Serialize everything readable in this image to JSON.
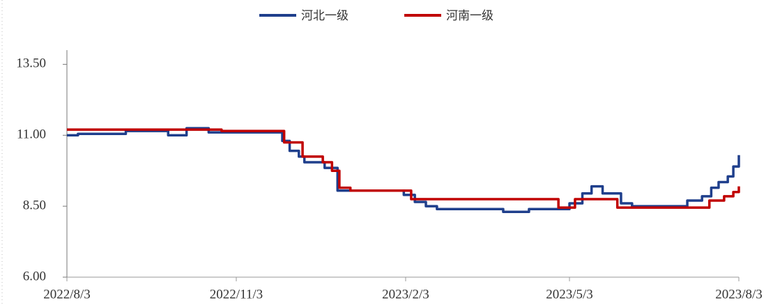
{
  "chart_data": {
    "type": "step-line",
    "xlim": [
      "2022/8/3",
      "2023/8/3"
    ],
    "xticks": [
      "2022/8/3",
      "2022/11/3",
      "2023/2/3",
      "2023/5/3",
      "2023/8/3"
    ],
    "ylim": [
      6,
      14
    ],
    "yticks": [
      {
        "value": 6,
        "label": "6.00"
      },
      {
        "value": 8.5,
        "label": "8.50"
      },
      {
        "value": 11,
        "label": "11.00"
      },
      {
        "value": 13.5,
        "label": "13.50"
      }
    ],
    "legend": "top",
    "series": [
      {
        "name": "河北一级",
        "color": "#1f3f8c",
        "x": [
          "2022/8/3",
          "2022/8/9",
          "2022/9/4",
          "2022/9/27",
          "2022/10/7",
          "2022/10/19",
          "2022/11/28",
          "2022/12/2",
          "2022/12/7",
          "2022/12/10",
          "2022/12/21",
          "2022/12/28",
          "2023/2/2",
          "2023/2/8",
          "2023/2/14",
          "2023/2/20",
          "2023/3/28",
          "2023/4/11",
          "2023/5/3",
          "2023/5/10",
          "2023/5/15",
          "2023/5/21",
          "2023/5/31",
          "2023/6/6",
          "2023/7/6",
          "2023/7/14",
          "2023/7/19",
          "2023/7/23",
          "2023/7/28",
          "2023/7/31",
          "2023/8/3"
        ],
        "values": [
          11.0,
          11.05,
          11.15,
          11.0,
          11.25,
          11.1,
          10.8,
          10.45,
          10.25,
          10.05,
          9.85,
          9.05,
          8.9,
          8.65,
          8.5,
          8.4,
          8.3,
          8.4,
          8.6,
          8.95,
          9.2,
          8.95,
          8.6,
          8.5,
          8.7,
          8.85,
          9.15,
          9.35,
          9.55,
          9.9,
          10.3
        ]
      },
      {
        "name": "河南一级",
        "color": "#c00000",
        "x": [
          "2022/8/3",
          "2022/10/26",
          "2022/11/29",
          "2022/12/9",
          "2022/12/20",
          "2022/12/25",
          "2022/12/29",
          "2023/1/4",
          "2023/2/6",
          "2023/4/27",
          "2023/5/6",
          "2023/5/29",
          "2023/7/18",
          "2023/7/26",
          "2023/7/31",
          "2023/8/3"
        ],
        "values": [
          11.2,
          11.15,
          10.75,
          10.25,
          10.05,
          9.75,
          9.15,
          9.05,
          8.75,
          8.45,
          8.75,
          8.45,
          8.7,
          8.85,
          9.0,
          9.2
        ]
      }
    ]
  }
}
